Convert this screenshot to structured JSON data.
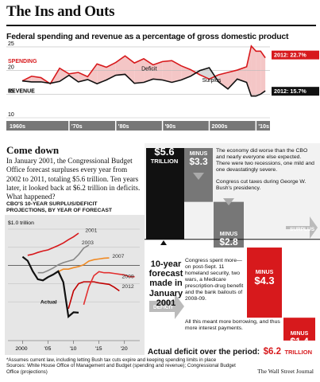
{
  "title": "The Ins and Outs",
  "top_chart": {
    "subtitle": "Federal spending and revenue as a percentage of gross domestic product",
    "series_labels": {
      "spending": "SPENDING",
      "revenue": "REVENUE"
    },
    "annotations": {
      "deficit": "Deficit",
      "surplus": "Surplus"
    },
    "end_labels": {
      "spending": "2012: 22.7%",
      "revenue": "2012: 15.7%"
    }
  },
  "come_down": {
    "heading": "Come down",
    "body": "In January 2001, the Congressional Budget Office forecast surpluses every year from 2002 to 2011, totaling $5.6 trillion. Ten years later, it looked back at $6.2 trillion in deficits. What happened?"
  },
  "cbo_chart": {
    "title_line1": "CBO'S 10-YEAR SURPLUS/DEFICIT",
    "title_line2": "PROJECTIONS, BY YEAR OF FORECAST",
    "unit_label": "$1.0 trillion",
    "series_labels": [
      "2001",
      "2003",
      "2007",
      "2009",
      "2012",
      "Actual"
    ]
  },
  "waterfall": {
    "forecast_value": "$5.6",
    "forecast_unit": "TRILLION",
    "forecast_caption": "10-year forecast made in January 2001",
    "minus_word": "MINUS",
    "steps": [
      {
        "value": "$3.3",
        "text": "The economy did worse than the CBO and nearly everyone else expected. There were two recessions, one mild and one devastatingly severe."
      },
      {
        "value": "$2.8",
        "text": "Congress cut taxes during George W. Bush's presidency."
      },
      {
        "value": "$4.3",
        "text": "Congress spent more—on post-Sept. 11 homeland security, two wars, a Medicare prescription-drug benefit and the bank bailouts of 2008-09."
      },
      {
        "value": "$1.4",
        "text": "All this meant more borrowing, and thus more interest payments."
      }
    ],
    "surplus_label": "SURPLUS",
    "deficit_label": "DEFICIT",
    "total_label": "Actual deficit over the period:",
    "total_value": "$6.2",
    "total_unit": "TRILLION"
  },
  "footnotes": {
    "note": "*Assumes current law, including letting Bush tax cuts expire and keeping spending limits in place",
    "sources": "Sources: White House Office of Management and Budget (spending and revenue); Congressional Budget Office (projections)",
    "credit": "The Wall Street Journal"
  },
  "colors": {
    "spending": "#d7191c",
    "revenue": "#111111",
    "deficit_fill": "#f4c6c6",
    "surplus_fill": "#d9d9d9",
    "proj_2001": "#d7191c",
    "proj_2003": "#888888",
    "proj_2007": "#f08a24",
    "proj_2009": "#c00000",
    "proj_2012": "#e23030",
    "proj_actual": "#111111"
  },
  "chart_data": [
    {
      "type": "line",
      "title": "Federal spending and revenue as a percentage of gross domestic product",
      "x_tick_labels": [
        "1960s",
        "'70s",
        "'80s",
        "'90s",
        "2000s",
        "'10s"
      ],
      "y_ticks": [
        10,
        15,
        20,
        25
      ],
      "ylim": [
        10,
        25.5
      ],
      "xlim": [
        1960,
        2013
      ],
      "x": [
        1960,
        1962,
        1964,
        1966,
        1968,
        1970,
        1972,
        1974,
        1976,
        1978,
        1980,
        1982,
        1984,
        1986,
        1988,
        1990,
        1992,
        1994,
        1996,
        1998,
        2000,
        2002,
        2004,
        2006,
        2008,
        2009,
        2010,
        2011,
        2012
      ],
      "series": [
        {
          "name": "SPENDING",
          "values": [
            17.8,
            18.8,
            18.5,
            17.2,
            20.5,
            19.3,
            19.6,
            18.7,
            21.4,
            20.7,
            21.7,
            23.1,
            21.6,
            22.5,
            21.2,
            21.9,
            22.1,
            21.0,
            20.2,
            19.1,
            18.2,
            19.1,
            19.6,
            20.1,
            20.8,
            25.2,
            24.1,
            24.1,
            22.7
          ]
        },
        {
          "name": "REVENUE",
          "values": [
            17.8,
            17.6,
            17.6,
            17.3,
            17.7,
            19.0,
            17.6,
            18.1,
            17.2,
            18.0,
            19.0,
            19.2,
            17.3,
            17.5,
            18.2,
            18.0,
            17.5,
            18.0,
            18.8,
            20.0,
            20.6,
            17.6,
            16.1,
            18.2,
            17.5,
            14.6,
            14.6,
            15.0,
            15.7
          ]
        }
      ],
      "end_values": {
        "spending_2012": 22.7,
        "revenue_2012": 15.7
      },
      "grid": false
    },
    {
      "type": "line",
      "title": "CBO'S 10-YEAR SURPLUS/DEFICIT PROJECTIONS, BY YEAR OF FORECAST",
      "ylabel": "$1.0 trillion",
      "x_tick_labels": [
        "2000",
        "'05",
        "'10",
        "'15",
        "'20"
      ],
      "xlim": [
        1999,
        2023
      ],
      "ylim": [
        -1.5,
        1.0
      ],
      "series": [
        {
          "name": "2001",
          "x": [
            2001,
            2002,
            2003,
            2004,
            2005,
            2006,
            2007,
            2008,
            2009,
            2010,
            2011
          ],
          "values": [
            0.28,
            0.31,
            0.36,
            0.4,
            0.43,
            0.49,
            0.55,
            0.62,
            0.71,
            0.79,
            0.89
          ]
        },
        {
          "name": "2003",
          "x": [
            2003,
            2004,
            2005,
            2006,
            2007,
            2008,
            2009,
            2010,
            2011,
            2012,
            2013
          ],
          "values": [
            -0.2,
            -0.2,
            -0.14,
            -0.07,
            0.02,
            0.08,
            0.12,
            0.16,
            0.3,
            0.48,
            0.56
          ]
        },
        {
          "name": "2007",
          "x": [
            2007,
            2008,
            2009,
            2010,
            2011,
            2012,
            2013,
            2014,
            2015,
            2016,
            2017
          ],
          "values": [
            -0.17,
            -0.1,
            -0.1,
            -0.06,
            -0.03,
            0.02,
            0.12,
            0.16,
            0.18,
            0.2,
            0.21
          ]
        },
        {
          "name": "2009",
          "x": [
            2009,
            2010,
            2011,
            2012,
            2013,
            2014,
            2015,
            2016,
            2017,
            2018,
            2019
          ],
          "values": [
            -1.19,
            -0.7,
            -0.5,
            -0.45,
            -0.45,
            -0.45,
            -0.48,
            -0.5,
            -0.52,
            -0.6,
            -0.7
          ]
        },
        {
          "name": "2012",
          "x": [
            2012,
            2013,
            2014,
            2015,
            2016,
            2017,
            2018,
            2019,
            2020,
            2021,
            2022
          ],
          "values": [
            -1.08,
            -0.59,
            -0.28,
            -0.17,
            -0.2,
            -0.2,
            -0.22,
            -0.24,
            -0.26,
            -0.31,
            -0.31
          ]
        },
        {
          "name": "Actual",
          "x": [
            2000,
            2001,
            2002,
            2003,
            2004,
            2005,
            2006,
            2007,
            2008,
            2009,
            2010,
            2011
          ],
          "values": [
            0.24,
            0.13,
            -0.16,
            -0.38,
            -0.41,
            -0.32,
            -0.25,
            -0.16,
            -0.46,
            -1.41,
            -1.29,
            -1.3
          ]
        }
      ]
    },
    {
      "type": "bar",
      "title": "",
      "categories": [
        "10-year forecast made in January 2001",
        "MINUS $3.3",
        "MINUS $2.8",
        "MINUS $4.3",
        "MINUS $1.4",
        "Actual deficit over the period"
      ],
      "values": [
        5.6,
        -3.3,
        -2.8,
        -4.3,
        -1.4,
        -6.2
      ],
      "unit": "TRILLION"
    }
  ]
}
